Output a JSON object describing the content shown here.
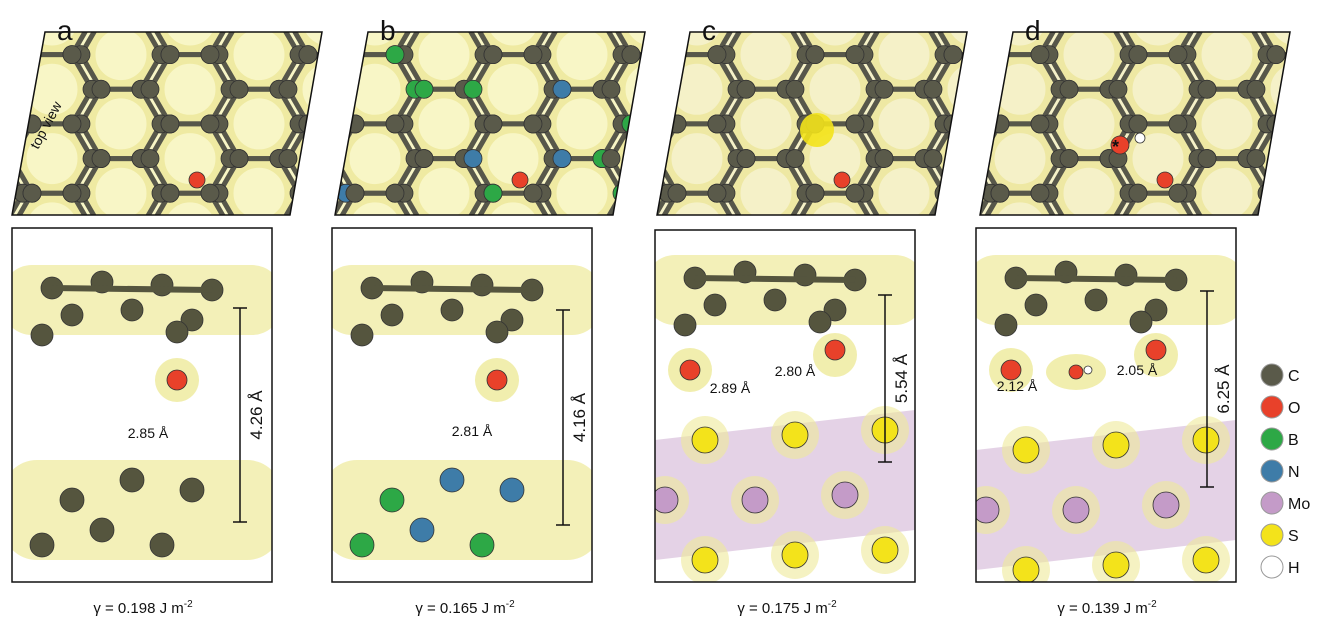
{
  "panels": [
    {
      "label": "a",
      "top_view_label": "top view",
      "scale": "4.26 Å",
      "distances": [
        "2.85 Å"
      ],
      "gamma": {
        "text": "γ = 0.198 J m",
        "superscript": "-2"
      }
    },
    {
      "label": "b",
      "scale": "4.16 Å",
      "distances": [
        "2.81 Å"
      ],
      "gamma": {
        "text": "γ = 0.165 J m",
        "superscript": "-2"
      }
    },
    {
      "label": "c",
      "scale": "5.54 Å",
      "distances": [
        "2.89 Å",
        "2.80 Å"
      ],
      "gamma": {
        "text": "γ = 0.175 J m",
        "superscript": "-2"
      }
    },
    {
      "label": "d",
      "scale": "6.25 Å",
      "distances": [
        "2.12 Å",
        "2.05 Å"
      ],
      "gamma": {
        "text": "γ = 0.139 J m",
        "superscript": "-2"
      }
    }
  ],
  "legend": [
    {
      "symbol": "C"
    },
    {
      "symbol": "O"
    },
    {
      "symbol": "B"
    },
    {
      "symbol": "N"
    },
    {
      "symbol": "Mo"
    },
    {
      "symbol": "S"
    },
    {
      "symbol": "H"
    }
  ]
}
